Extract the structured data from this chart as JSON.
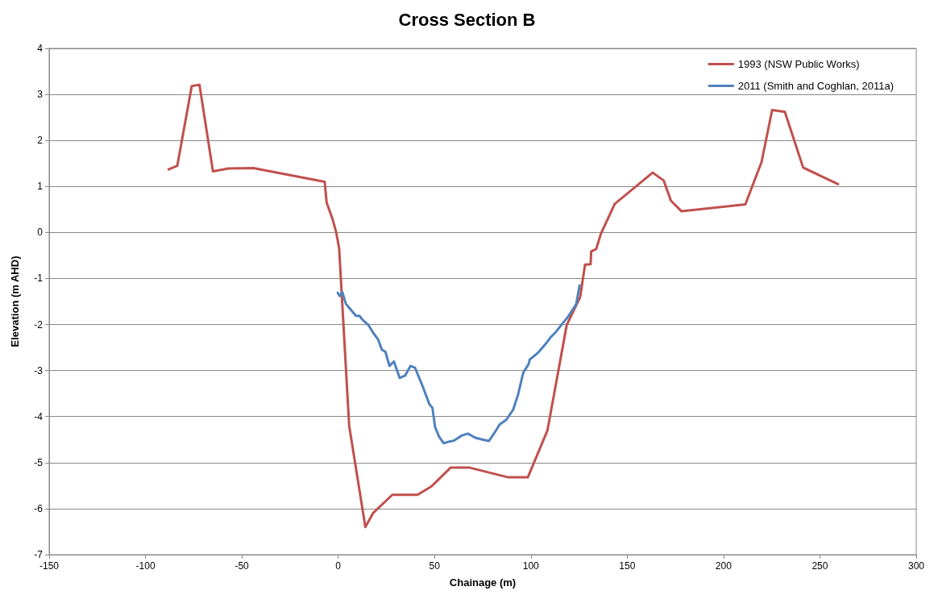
{
  "chart_data": {
    "type": "line",
    "title": "Cross Section B",
    "xlabel": "Chainage (m)",
    "ylabel": "Elevation (m AHD)",
    "xlim": [
      -150,
      300
    ],
    "xticks": [
      -150,
      -100,
      -50,
      0,
      50,
      100,
      150,
      200,
      250,
      300
    ],
    "ylim": [
      -7,
      4
    ],
    "yticks": [
      -7,
      -6,
      -5,
      -4,
      -3,
      -2,
      -1,
      0,
      1,
      2,
      3,
      4
    ],
    "grid": "y",
    "legend": "top right",
    "marker": "none",
    "line_style": "solid",
    "series": [
      {
        "name": "1993 (NSW Public Works)",
        "color": "#c0504d",
        "x": [
          -88,
          -83.5,
          -76,
          -72,
          -65,
          -57,
          -44,
          -7,
          -6,
          -3,
          -1,
          0.5,
          5.7,
          14.1,
          18.2,
          28.1,
          41.2,
          48.6,
          58.3,
          68.3,
          88.3,
          98.4,
          108.6,
          118.6,
          125.6,
          128.1,
          131,
          131.3,
          133.9,
          136.3,
          143.5,
          163.2,
          168.9,
          172.7,
          178.2,
          211.3,
          219.7,
          225.2,
          231.8,
          241.3,
          259.4
        ],
        "values": [
          1.37,
          1.45,
          3.18,
          3.21,
          1.33,
          1.39,
          1.4,
          1.1,
          0.65,
          0.3,
          0,
          -0.35,
          -4.2,
          -6.4,
          -6.09,
          -5.7,
          -5.7,
          -5.51,
          -5.11,
          -5.11,
          -5.32,
          -5.32,
          -4.3,
          -2.01,
          -1.4,
          -0.7,
          -0.69,
          -0.41,
          -0.36,
          -0.03,
          0.62,
          1.3,
          1.13,
          0.69,
          0.46,
          0.61,
          1.53,
          2.66,
          2.62,
          1.41,
          1.05
        ]
      },
      {
        "name": "2011 (Smith and Coghlan, 2011a)",
        "color": "#4f81bd",
        "x": [
          -0.2,
          0.8,
          2.2,
          4,
          6.4,
          9.2,
          11,
          12.7,
          15.5,
          18,
          20.8,
          22.7,
          24.5,
          26.6,
          28.9,
          31.9,
          34.7,
          37.5,
          39.9,
          44,
          47.3,
          48.9,
          50.3,
          52.4,
          54.8,
          56.9,
          60.1,
          64.2,
          67.3,
          71.2,
          74,
          78.2,
          80.7,
          83.8,
          87.2,
          90.8,
          93.3,
          96,
          98.8,
          99.4,
          101.2,
          104,
          107.5,
          110.2,
          113,
          115.8,
          119.3,
          123.5,
          125.3
        ],
        "values": [
          -1.31,
          -1.38,
          -1.3,
          -1.55,
          -1.67,
          -1.81,
          -1.81,
          -1.9,
          -2,
          -2.17,
          -2.33,
          -2.55,
          -2.59,
          -2.9,
          -2.8,
          -3.16,
          -3.11,
          -2.9,
          -2.94,
          -3.36,
          -3.73,
          -3.81,
          -4.23,
          -4.44,
          -4.58,
          -4.55,
          -4.52,
          -4.41,
          -4.37,
          -4.46,
          -4.49,
          -4.53,
          -4.38,
          -4.17,
          -4.07,
          -3.85,
          -3.53,
          -3.05,
          -2.86,
          -2.76,
          -2.7,
          -2.6,
          -2.43,
          -2.28,
          -2.16,
          -2.01,
          -1.83,
          -1.56,
          -1.15
        ]
      }
    ]
  }
}
